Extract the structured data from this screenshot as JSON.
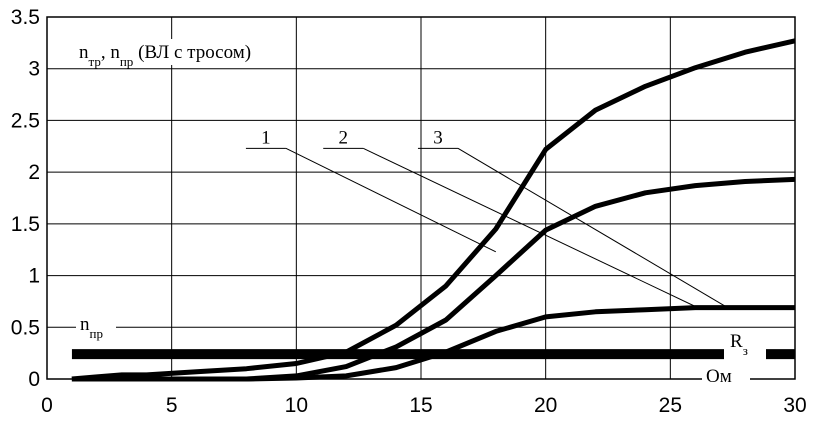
{
  "chart_data": {
    "type": "line",
    "title": "",
    "xlabel": "",
    "ylabel": "",
    "x_unit": "Ом",
    "annotation": "n",
    "annotation_sub": "тр",
    "annotation_mid": ", n",
    "annotation_sub2": "пр",
    "annotation_tail": " (ВЛ с тросом)",
    "xlim": [
      0,
      30
    ],
    "ylim": [
      0,
      3.5
    ],
    "x_ticks": [
      0,
      5,
      10,
      15,
      20,
      25,
      30
    ],
    "y_ticks": [
      0,
      0.5,
      1,
      1.5,
      2,
      2.5,
      3,
      3.5
    ],
    "x_tick_labels": [
      "0",
      "5",
      "10",
      "15",
      "20",
      "25",
      "30"
    ],
    "y_tick_labels": [
      "0",
      "0.5",
      "1",
      "1.5",
      "2",
      "2.5",
      "3",
      "3.5"
    ],
    "grid": true,
    "series": [
      {
        "name": "1",
        "x": [
          1,
          2,
          3,
          4,
          6,
          8,
          10,
          12,
          14,
          16,
          18,
          20,
          22,
          24,
          26,
          28,
          30
        ],
        "y": [
          0,
          0,
          0,
          0,
          0,
          0,
          0.01,
          0.03,
          0.11,
          0.26,
          0.46,
          0.6,
          0.65,
          0.67,
          0.69,
          0.69,
          0.69
        ]
      },
      {
        "name": "2",
        "x": [
          1,
          2,
          3,
          4,
          6,
          8,
          10,
          12,
          14,
          16,
          18,
          20,
          22,
          24,
          26,
          28,
          30
        ],
        "y": [
          0,
          0,
          0,
          0,
          0,
          0,
          0.03,
          0.12,
          0.31,
          0.57,
          1.0,
          1.44,
          1.67,
          1.8,
          1.87,
          1.91,
          1.93
        ]
      },
      {
        "name": "3",
        "x": [
          1,
          2,
          3,
          4,
          6,
          8,
          10,
          12,
          14,
          16,
          18,
          20,
          22,
          24,
          26,
          28,
          30
        ],
        "y": [
          0,
          0.02,
          0.04,
          0.04,
          0.07,
          0.1,
          0.15,
          0.26,
          0.52,
          0.9,
          1.45,
          2.22,
          2.6,
          2.83,
          3.01,
          3.16,
          3.27
        ]
      }
    ],
    "reference": {
      "name": "n",
      "name_sub": "пр",
      "value": 0.24
    },
    "marker_label": "R",
    "marker_label_sub": "з",
    "series_label_points": [
      {
        "label": "1",
        "label_x": 8.7,
        "label_y": 2.23,
        "target_x": 18.0,
        "target_y": 1.23
      },
      {
        "label": "2",
        "label_x": 11.8,
        "label_y": 2.23,
        "target_x": 26.1,
        "target_y": 0.69
      },
      {
        "label": "3",
        "label_x": 15.6,
        "label_y": 2.23,
        "target_x": 27.3,
        "target_y": 0.69
      }
    ]
  }
}
